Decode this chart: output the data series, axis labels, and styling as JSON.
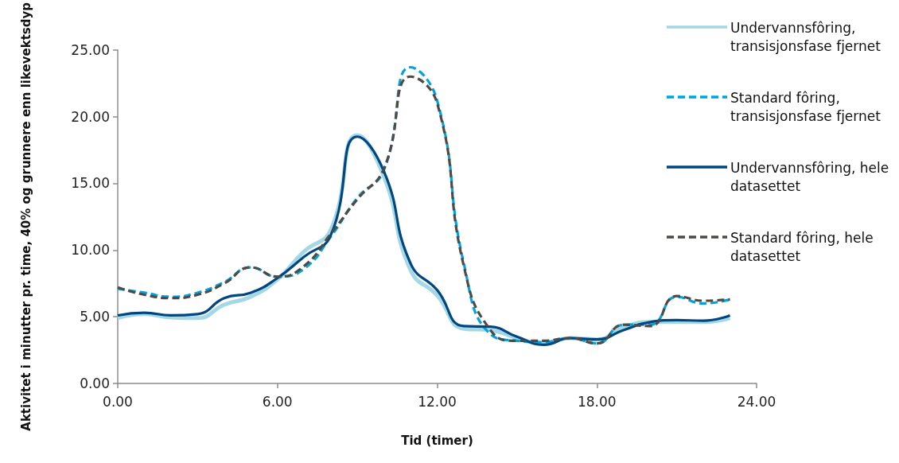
{
  "chart_data": {
    "type": "line",
    "xlabel": "Tid (timer)",
    "ylabel": "Aktivitet i minutter pr. time, 40% og grunnere enn likevektsdyp",
    "x": [
      0,
      1,
      2,
      3,
      4,
      5,
      6,
      7,
      8,
      9,
      10,
      11,
      12,
      13,
      14,
      15,
      16,
      17,
      18,
      19,
      20,
      21,
      22,
      23
    ],
    "series": [
      {
        "name": "Undervannsfôring, transisjonsfase fjernet",
        "color": "#a5d8e6",
        "line_style": "solid",
        "values": [
          4.9,
          5.2,
          4.95,
          4.9,
          5.9,
          6.5,
          7.8,
          9.9,
          11.5,
          18.6,
          15.5,
          8.5,
          6.6,
          4.1,
          4.0,
          3.4,
          3.0,
          3.4,
          3.3,
          4.2,
          4.6,
          4.6,
          4.6,
          4.9
        ]
      },
      {
        "name": "Standard fôring, transisjonsfase fjernet",
        "color": "#00a3e0",
        "line_style": "dashed",
        "values": [
          7.1,
          6.8,
          6.5,
          6.8,
          7.6,
          8.7,
          8.0,
          8.6,
          11.0,
          13.9,
          16.0,
          23.7,
          21.2,
          9.0,
          3.7,
          3.2,
          3.1,
          3.4,
          3.0,
          4.4,
          4.4,
          6.5,
          6.0,
          6.3
        ]
      },
      {
        "name": "Undervannsfôring, hele datasettet",
        "color": "#004680",
        "line_style": "solid",
        "values": [
          5.1,
          5.3,
          5.1,
          5.2,
          6.4,
          6.8,
          7.9,
          9.5,
          11.1,
          18.5,
          15.9,
          9.0,
          7.0,
          4.3,
          4.25,
          3.5,
          2.9,
          3.4,
          3.3,
          4.0,
          4.6,
          4.75,
          4.7,
          5.1
        ]
      },
      {
        "name": "Standard fôring, hele datasettet",
        "color": "#4f4a45",
        "line_style": "dashed",
        "values": [
          7.2,
          6.65,
          6.4,
          6.65,
          7.5,
          8.7,
          8.0,
          8.8,
          11.2,
          13.8,
          16.1,
          23.0,
          21.0,
          8.8,
          4.0,
          3.2,
          3.2,
          3.4,
          3.0,
          4.4,
          4.3,
          6.55,
          6.2,
          6.3
        ]
      }
    ],
    "xlim": [
      0,
      24
    ],
    "xticks": [
      {
        "value": 0,
        "label": "0.00"
      },
      {
        "value": 6,
        "label": "6.00"
      },
      {
        "value": 12,
        "label": "12.00"
      },
      {
        "value": 18,
        "label": "18.00"
      },
      {
        "value": 24,
        "label": "24.00"
      }
    ],
    "ylim": [
      0,
      25
    ],
    "yticks": [
      {
        "value": 0,
        "label": "0.00"
      },
      {
        "value": 5,
        "label": "5.00"
      },
      {
        "value": 10,
        "label": "10.00"
      },
      {
        "value": 15,
        "label": "15.00"
      },
      {
        "value": 20,
        "label": "20.00"
      },
      {
        "value": 25,
        "label": "25.00"
      }
    ],
    "grid": false,
    "legend": "right",
    "marker": "none"
  }
}
